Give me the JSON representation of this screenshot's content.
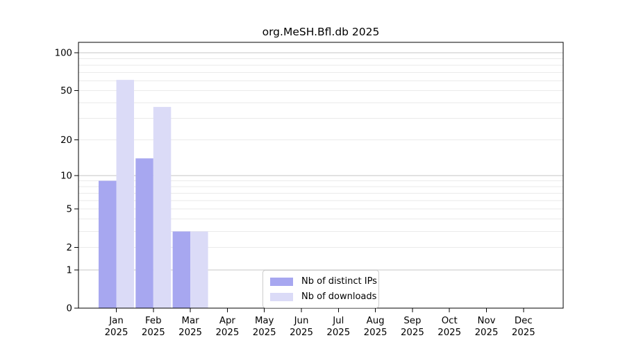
{
  "chart_data": {
    "type": "bar",
    "title": "org.MeSH.Bfl.db 2025",
    "xlabel": "",
    "ylabel": "",
    "year_label": "2025",
    "categories": [
      "Jan",
      "Feb",
      "Mar",
      "Apr",
      "May",
      "Jun",
      "Jul",
      "Aug",
      "Sep",
      "Oct",
      "Nov",
      "Dec"
    ],
    "series": [
      {
        "name": "Nb of distinct IPs",
        "color": "#a7a7f0",
        "values": [
          9,
          14,
          3,
          0,
          0,
          0,
          0,
          0,
          0,
          0,
          0,
          0
        ]
      },
      {
        "name": "Nb of downloads",
        "color": "#dbdbf7",
        "values": [
          61,
          37,
          3,
          0,
          0,
          0,
          0,
          0,
          0,
          0,
          0,
          0
        ]
      }
    ],
    "yscale": "log1p",
    "ylim": [
      0,
      121
    ],
    "yticks": [
      0,
      1,
      2,
      5,
      10,
      20,
      50,
      100
    ],
    "ytick_labels": [
      "0",
      "1",
      "2",
      "5",
      "10",
      "20",
      "50",
      "100"
    ],
    "major_gridlines": [
      1,
      10,
      100
    ],
    "minor_gridlines": [
      2,
      3,
      4,
      5,
      6,
      7,
      8,
      9,
      20,
      30,
      40,
      50,
      60,
      70,
      80,
      90
    ],
    "grid": true,
    "legend_position": "lower center"
  },
  "colors": {
    "major_grid": "#c6c6c6",
    "minor_grid": "#eaeaea",
    "spine": "#000000",
    "text": "#000000",
    "legend_border": "#cccccc"
  }
}
